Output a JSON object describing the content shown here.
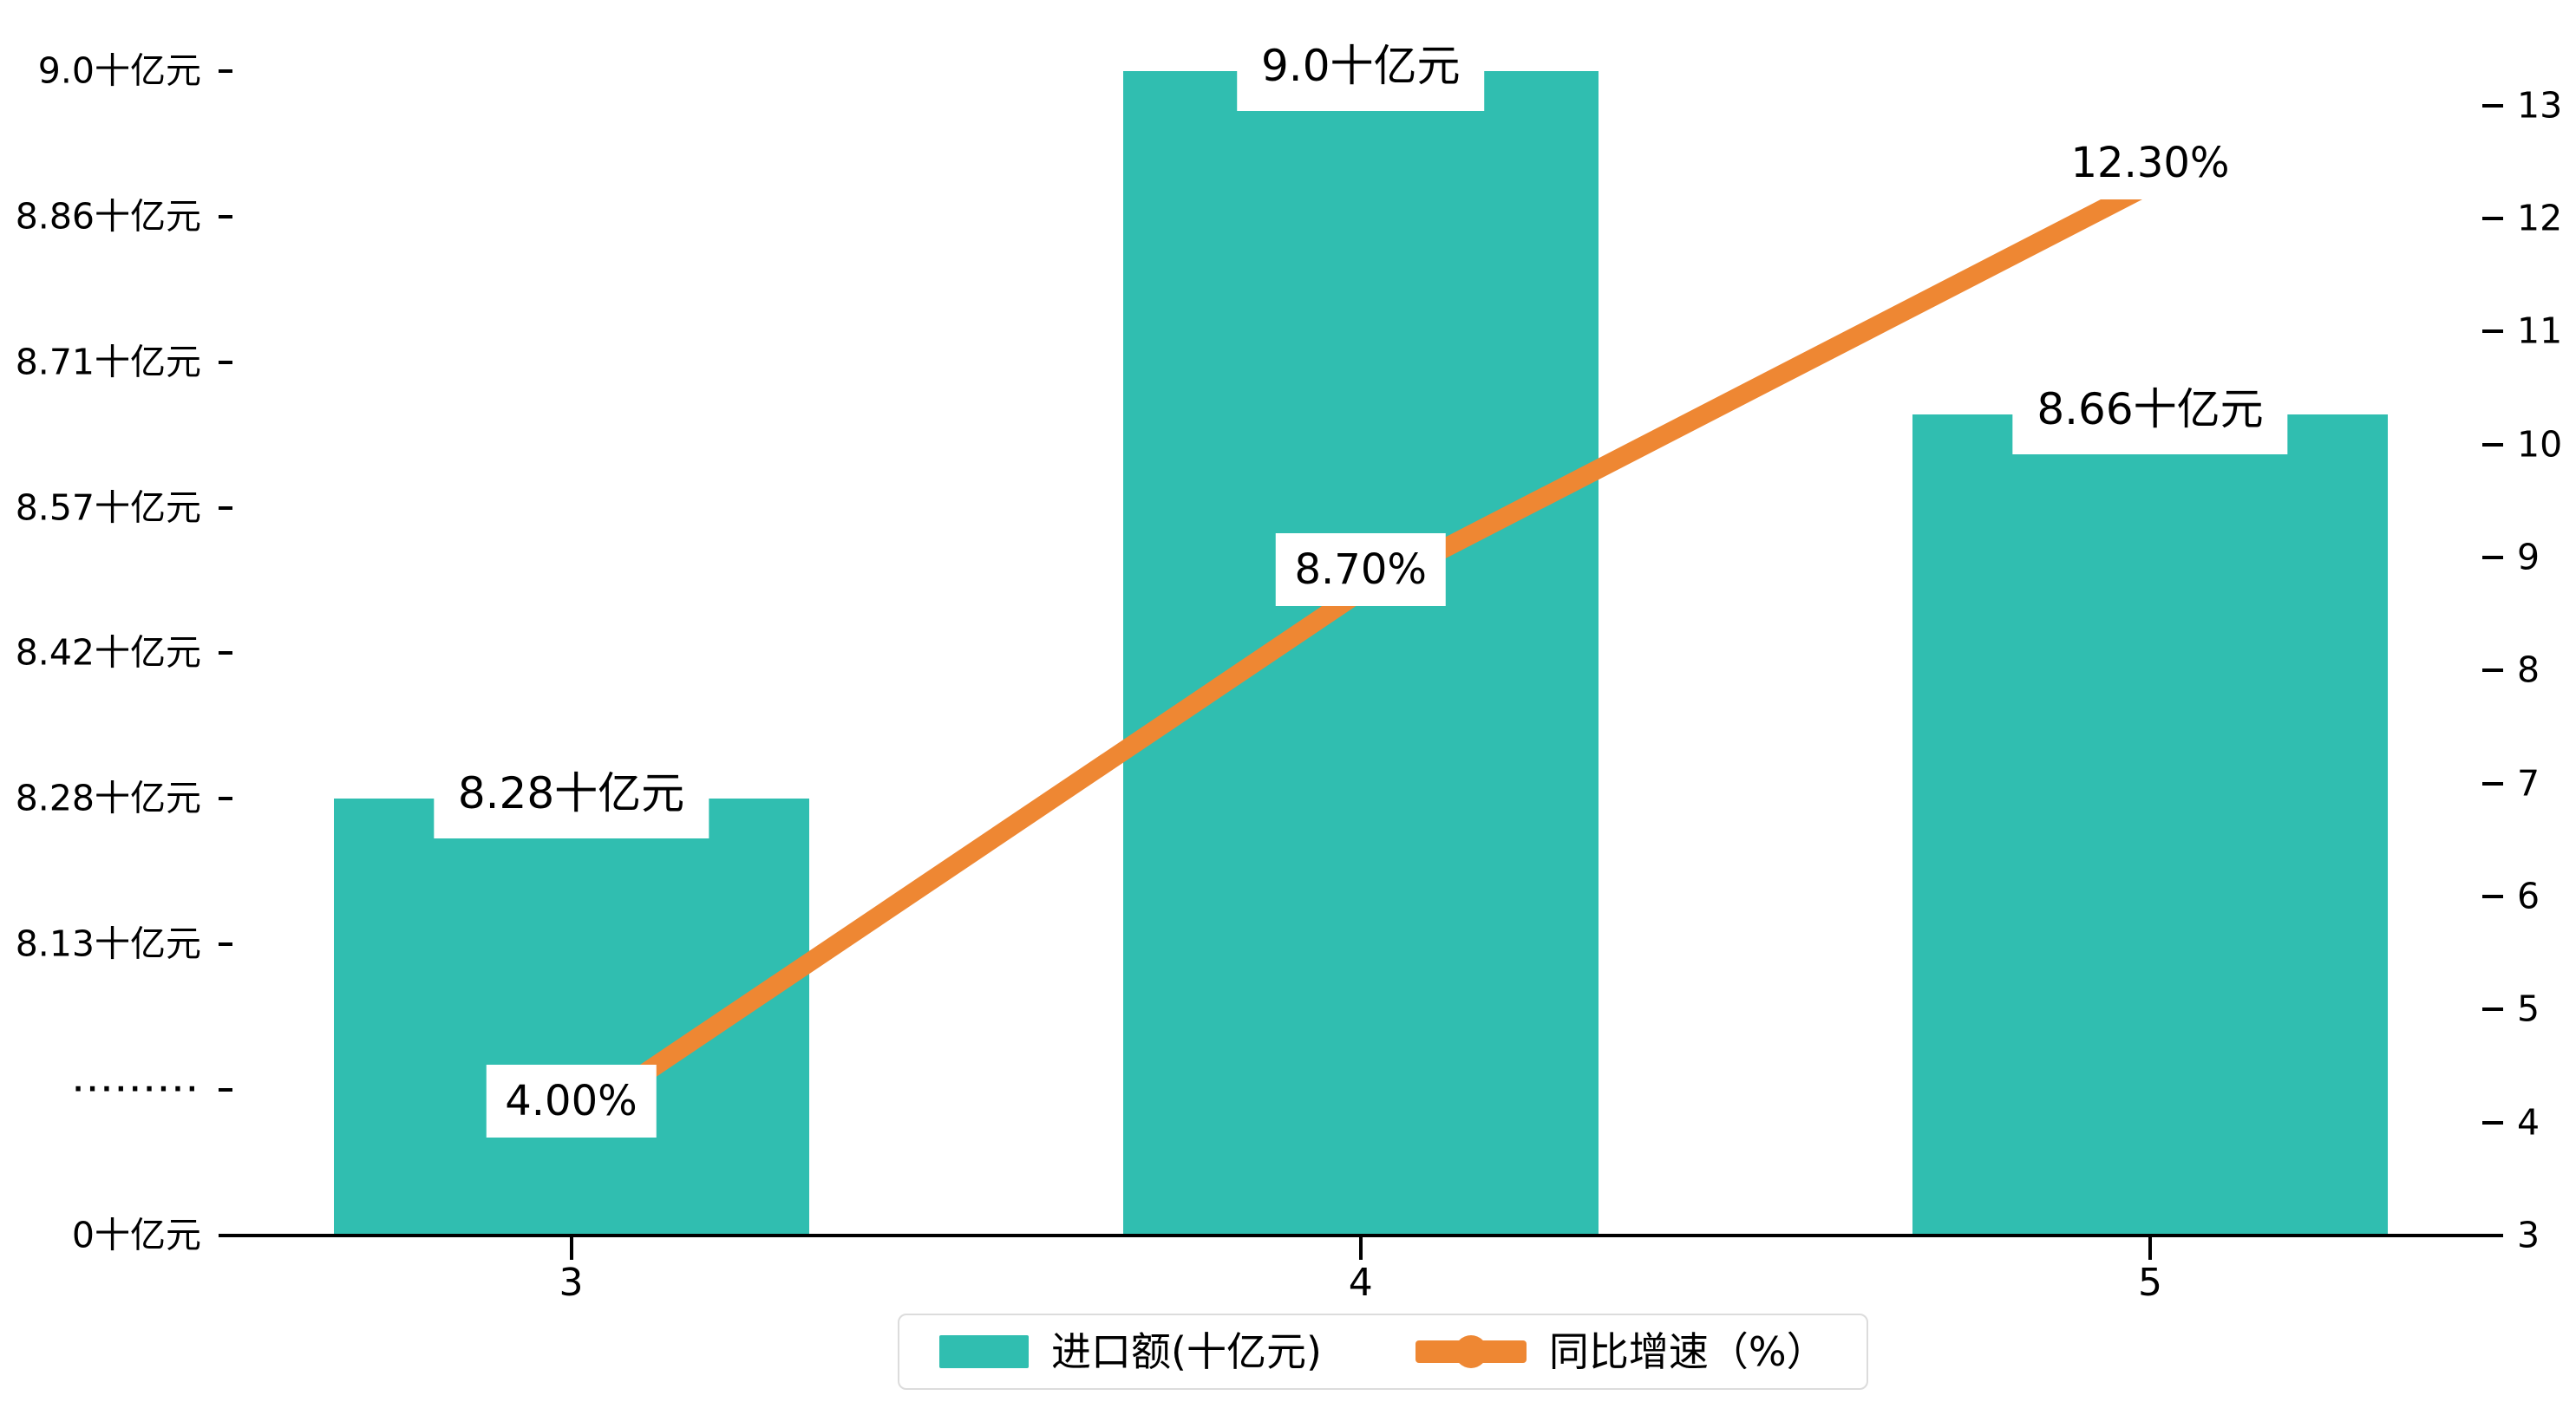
{
  "colors": {
    "bar": "#30beb0",
    "line": "#ee8733",
    "grid": "#e9e9e9",
    "grid_over_bar": "rgba(255,255,255,0.55)",
    "axis": "#000000",
    "text": "#000000",
    "legend_border": "#dcdcdc",
    "background": "#ffffff"
  },
  "chart_data": {
    "type": "combo",
    "subtypes": [
      "bar",
      "line"
    ],
    "categories": [
      "3",
      "4",
      "5"
    ],
    "series": [
      {
        "name": "进口额(十亿元)",
        "type": "bar",
        "axis": "left",
        "values": [
          8.28,
          9.0,
          8.66
        ],
        "data_labels": [
          "8.28十亿元",
          "9.0十亿元",
          "8.66十亿元"
        ]
      },
      {
        "name": "同比增速（%）",
        "type": "line",
        "axis": "right",
        "values": [
          4.0,
          8.7,
          12.3
        ],
        "data_labels": [
          "4.00%",
          "8.70%",
          "12.30%"
        ]
      }
    ],
    "left_axis": {
      "unit": "十亿元",
      "broken": true,
      "ticks": [
        {
          "label": "0十亿元",
          "value": 0
        },
        {
          "label": "·········",
          "value": null
        },
        {
          "label": "8.13十亿元",
          "value": 8.13
        },
        {
          "label": "8.28十亿元",
          "value": 8.28
        },
        {
          "label": "8.42十亿元",
          "value": 8.42
        },
        {
          "label": "8.57十亿元",
          "value": 8.57
        },
        {
          "label": "8.71十亿元",
          "value": 8.71
        },
        {
          "label": "8.86十亿元",
          "value": 8.86
        },
        {
          "label": "9.0十亿元",
          "value": 9.0
        }
      ]
    },
    "right_axis": {
      "min": 3,
      "max": 13,
      "step": 1,
      "tick_labels": [
        "3",
        "4",
        "5",
        "6",
        "7",
        "8",
        "9",
        "10",
        "11",
        "12",
        "13"
      ]
    },
    "x_axis": {
      "tick_labels": [
        "3",
        "4",
        "5"
      ]
    },
    "legend": {
      "items": [
        {
          "label": "进口额(十亿元)",
          "marker": "square"
        },
        {
          "label": "同比增速（%）",
          "marker": "line-dot"
        }
      ]
    },
    "grid": {
      "horizontal": true,
      "dashed": true,
      "legend_position": "bottom-center"
    }
  }
}
